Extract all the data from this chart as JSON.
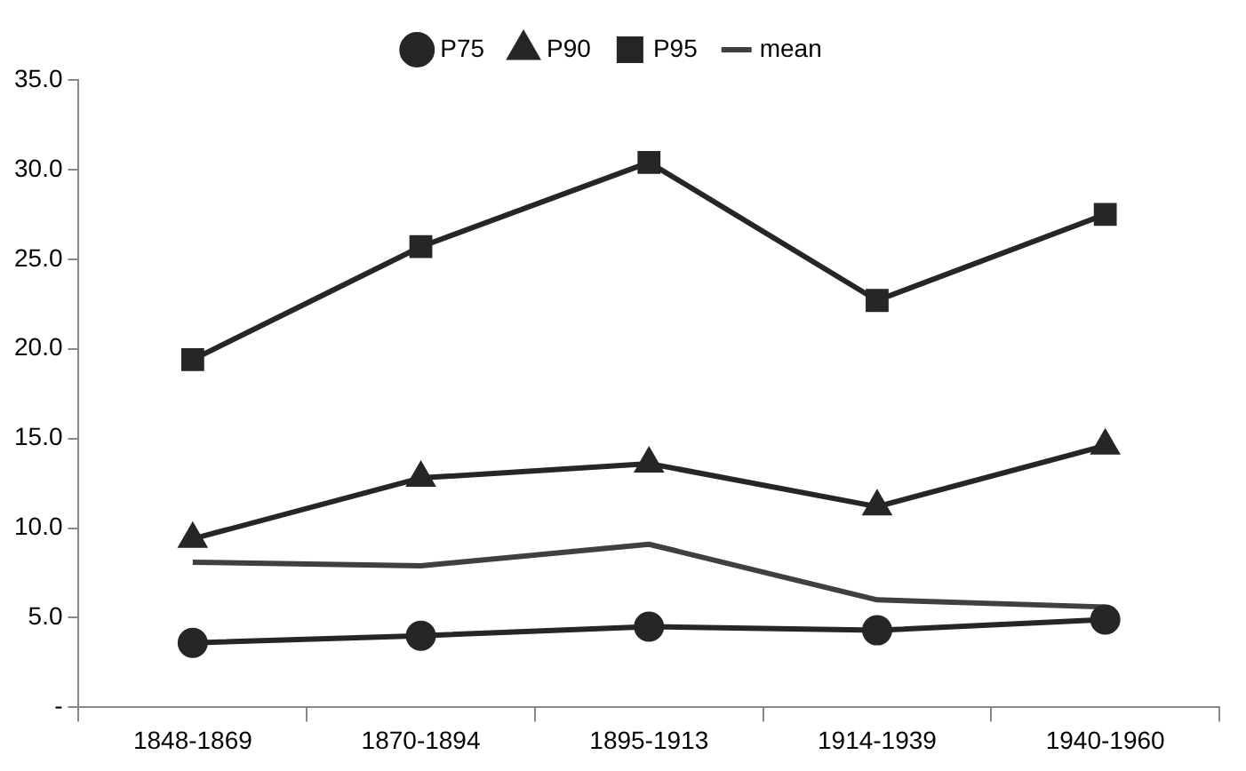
{
  "chart_data": {
    "type": "line",
    "categories": [
      "1848-1869",
      "1870-1894",
      "1895-1913",
      "1914-1939",
      "1940-1960"
    ],
    "series": [
      {
        "name": "P75",
        "color": "#262626",
        "marker": "circle",
        "values": [
          3.6,
          4.0,
          4.5,
          4.3,
          4.9
        ]
      },
      {
        "name": "P90",
        "color": "#262626",
        "marker": "triangle",
        "values": [
          9.4,
          12.8,
          13.6,
          11.2,
          14.6
        ]
      },
      {
        "name": "P95",
        "color": "#262626",
        "marker": "square",
        "values": [
          19.4,
          25.7,
          30.4,
          22.7,
          27.5
        ]
      },
      {
        "name": "mean",
        "color": "#404040",
        "marker": "none",
        "values": [
          8.1,
          7.9,
          9.1,
          6.0,
          5.6
        ]
      }
    ],
    "ylim": [
      0,
      35
    ],
    "yticks": [
      {
        "value": 0,
        "label": "-"
      },
      {
        "value": 5,
        "label": "5.0"
      },
      {
        "value": 10,
        "label": "10.0"
      },
      {
        "value": 15,
        "label": "15.0"
      },
      {
        "value": 20,
        "label": "20.0"
      },
      {
        "value": 25,
        "label": "25.0"
      },
      {
        "value": 30,
        "label": "30.0"
      },
      {
        "value": 35,
        "label": "35.0"
      }
    ],
    "grid": false,
    "legend": "top",
    "line_style": "solid"
  }
}
